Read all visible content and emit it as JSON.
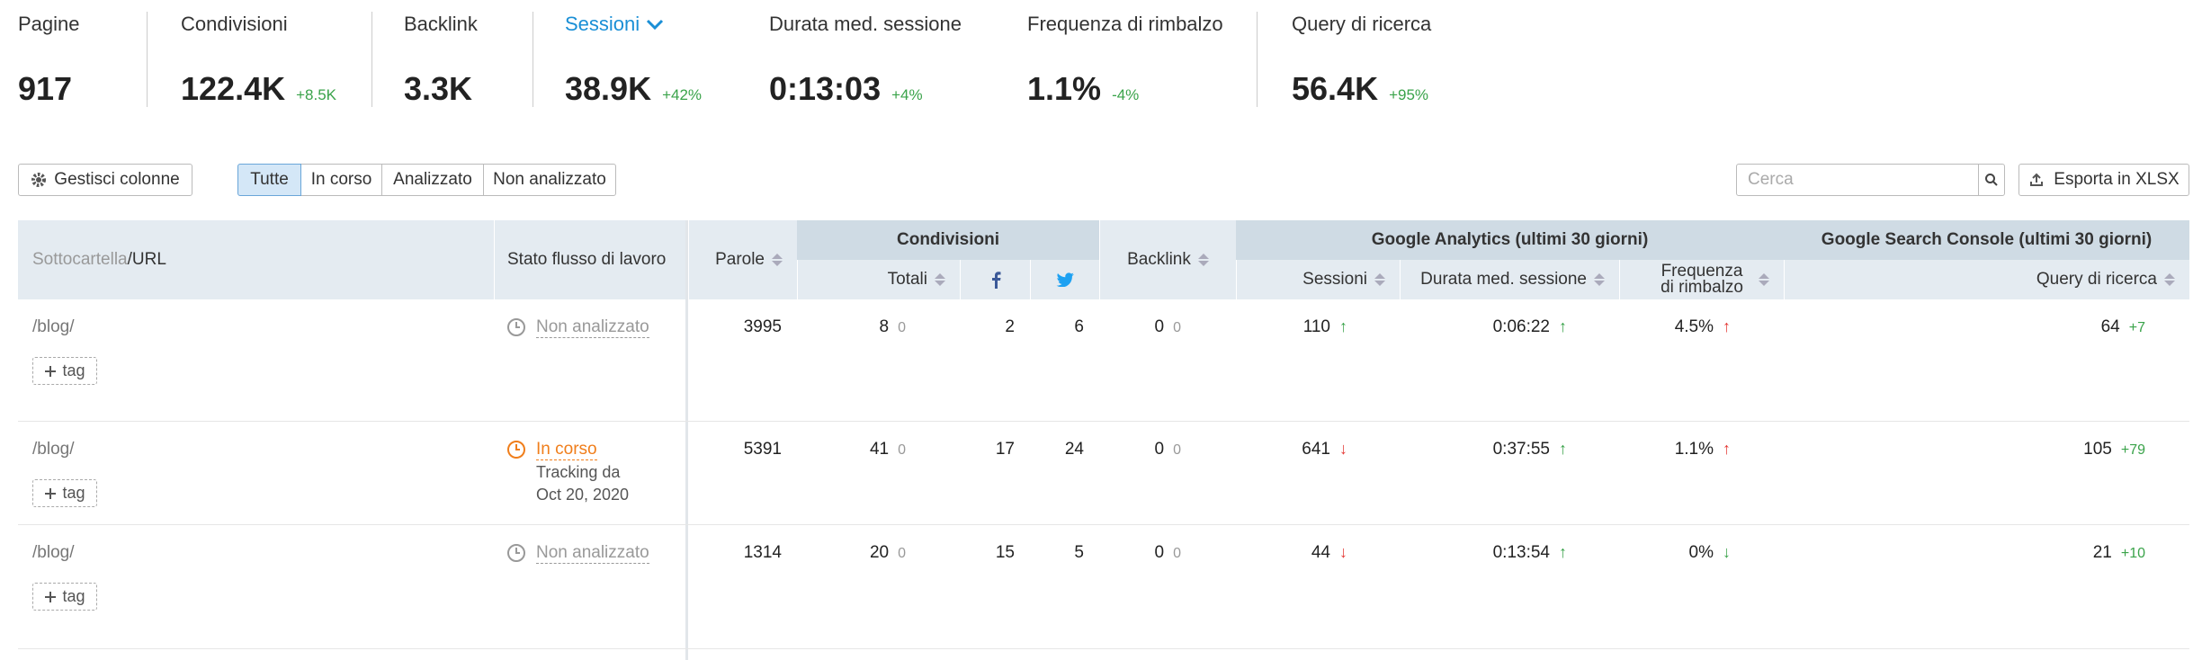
{
  "summary": [
    {
      "label": "Pagine",
      "value": "917"
    },
    {
      "label": "Condivisioni",
      "value": "122.4K",
      "delta": "+8.5K"
    },
    {
      "label": "Backlink",
      "value": "3.3K"
    },
    {
      "label": "Sessioni",
      "value": "38.9K",
      "delta": "+42%"
    },
    {
      "label": "Durata med. sessione",
      "value": "0:13:03",
      "delta": "+4%"
    },
    {
      "label": "Frequenza di rimbalzo",
      "value": "1.1%",
      "delta": "-4%"
    },
    {
      "label": "Query di ricerca",
      "value": "56.4K",
      "delta": "+95%"
    }
  ],
  "toolbar": {
    "manage": "Gestisci colonne",
    "filters": [
      "Tutte",
      "In corso",
      "Analizzato",
      "Non analizzato"
    ],
    "search_placeholder": "Cerca",
    "export": "Esporta in XLSX"
  },
  "table": {
    "group_headers": {
      "shares": "Condivisioni",
      "analytics": "Google Analytics (ultimi 30 giorni)",
      "search_console": "Google Search Console (ultimi 30 giorni)"
    },
    "headers": {
      "url_prefix": "Sottocartella",
      "url_suffix": "/URL",
      "status": "Stato flusso di lavoro",
      "words": "Parole",
      "shares": "Totali",
      "backlinks": "Backlink",
      "sessions": "Sessioni",
      "duration": "Durata med. sessione",
      "bounce": "Frequenza di rimbalzo",
      "queries": "Query di ricerca"
    },
    "rows": [
      {
        "url": "/blog/",
        "status": "Non analizzato",
        "status_color": "#999999",
        "note": [],
        "tag": "tag",
        "words": "3995",
        "shares": "8",
        "shares_delta": "0",
        "facebook": "2",
        "twitter": "6",
        "backlinks": "0",
        "backlinks_delta": "0",
        "sessions": "110",
        "sessions_arrow": "↑",
        "sessions_arrow_color": "#3aa34a",
        "duration": "0:06:22",
        "duration_arrow": "↑",
        "duration_arrow_color": "#3aa34a",
        "bounce": "4.5%",
        "bounce_arrow": "↑",
        "bounce_arrow_color": "#e53935",
        "queries": "64",
        "queries_delta": "+7"
      },
      {
        "url": "/blog/",
        "status": "In corso",
        "status_color": "#f07e1b",
        "note": [
          "Tracking da",
          "Oct 20, 2020"
        ],
        "tag": "tag",
        "words": "5391",
        "shares": "41",
        "shares_delta": "0",
        "facebook": "17",
        "twitter": "24",
        "backlinks": "0",
        "backlinks_delta": "0",
        "sessions": "641",
        "sessions_arrow": "↓",
        "sessions_arrow_color": "#e53935",
        "duration": "0:37:55",
        "duration_arrow": "↑",
        "duration_arrow_color": "#3aa34a",
        "bounce": "1.1%",
        "bounce_arrow": "↑",
        "bounce_arrow_color": "#e53935",
        "queries": "105",
        "queries_delta": "+79"
      },
      {
        "url": "/blog/",
        "status": "Non analizzato",
        "status_color": "#999999",
        "note": [],
        "tag": "tag",
        "words": "1314",
        "shares": "20",
        "shares_delta": "0",
        "facebook": "15",
        "twitter": "5",
        "backlinks": "0",
        "backlinks_delta": "0",
        "sessions": "44",
        "sessions_arrow": "↓",
        "sessions_arrow_color": "#e53935",
        "duration": "0:13:54",
        "duration_arrow": "↑",
        "duration_arrow_color": "#3aa34a",
        "bounce": "0%",
        "bounce_arrow": "↓",
        "bounce_arrow_color": "#3aa34a",
        "queries": "21",
        "queries_delta": "+10"
      }
    ]
  }
}
